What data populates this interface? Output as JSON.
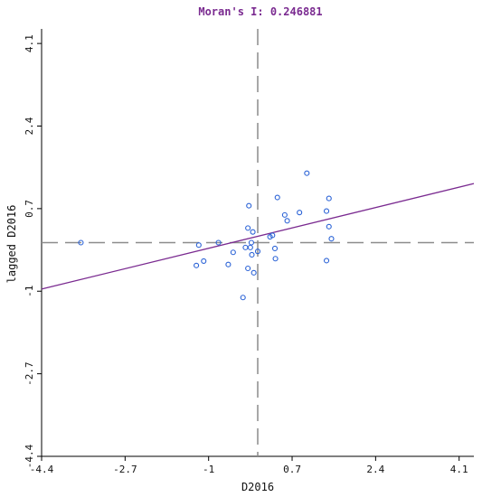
{
  "chart_data": {
    "type": "scatter",
    "title": "Moran's I: 0.246881",
    "xlabel": "D2016",
    "ylabel": "lagged D2016",
    "xlim": [
      -4.4,
      4.4
    ],
    "ylim": [
      -4.4,
      4.4
    ],
    "x_ticks": [
      "-4.4",
      "-2.7",
      "-1",
      "0.7",
      "2.4",
      "4.1"
    ],
    "y_ticks": [
      "-4.4",
      "-2.7",
      "-1",
      "0.7",
      "2.4",
      "4.1"
    ],
    "mean_x": 0,
    "mean_y": 0,
    "regression": {
      "slope": 0.246881,
      "intercept": 0.13
    },
    "points": [
      {
        "x": -3.6,
        "y": 0.0
      },
      {
        "x": -1.2,
        "y": -0.05
      },
      {
        "x": -1.25,
        "y": -0.47
      },
      {
        "x": -1.1,
        "y": -0.38
      },
      {
        "x": -0.8,
        "y": 0.0
      },
      {
        "x": -0.6,
        "y": -0.45
      },
      {
        "x": -0.5,
        "y": -0.2
      },
      {
        "x": -0.3,
        "y": -1.13
      },
      {
        "x": -0.25,
        "y": -0.1
      },
      {
        "x": -0.2,
        "y": -0.53
      },
      {
        "x": -0.2,
        "y": 0.3
      },
      {
        "x": -0.18,
        "y": 0.76
      },
      {
        "x": -0.15,
        "y": -0.1
      },
      {
        "x": -0.13,
        "y": 0.0
      },
      {
        "x": -0.12,
        "y": -0.25
      },
      {
        "x": -0.1,
        "y": 0.22
      },
      {
        "x": -0.08,
        "y": -0.62
      },
      {
        "x": 0.0,
        "y": -0.18
      },
      {
        "x": 0.25,
        "y": 0.12
      },
      {
        "x": 0.3,
        "y": 0.15
      },
      {
        "x": 0.35,
        "y": -0.12
      },
      {
        "x": 0.36,
        "y": -0.33
      },
      {
        "x": 0.4,
        "y": 0.93
      },
      {
        "x": 0.55,
        "y": 0.57
      },
      {
        "x": 0.6,
        "y": 0.45
      },
      {
        "x": 0.85,
        "y": 0.62
      },
      {
        "x": 1.0,
        "y": 1.43
      },
      {
        "x": 1.4,
        "y": -0.37
      },
      {
        "x": 1.4,
        "y": 0.65
      },
      {
        "x": 1.45,
        "y": 0.91
      },
      {
        "x": 1.45,
        "y": 0.33
      },
      {
        "x": 1.5,
        "y": 0.08
      }
    ],
    "grid": false,
    "colors": {
      "points": "#2a62d6",
      "line": "#7a2a90",
      "title": "#7a2a90",
      "guides": "#8c8c8c"
    }
  }
}
